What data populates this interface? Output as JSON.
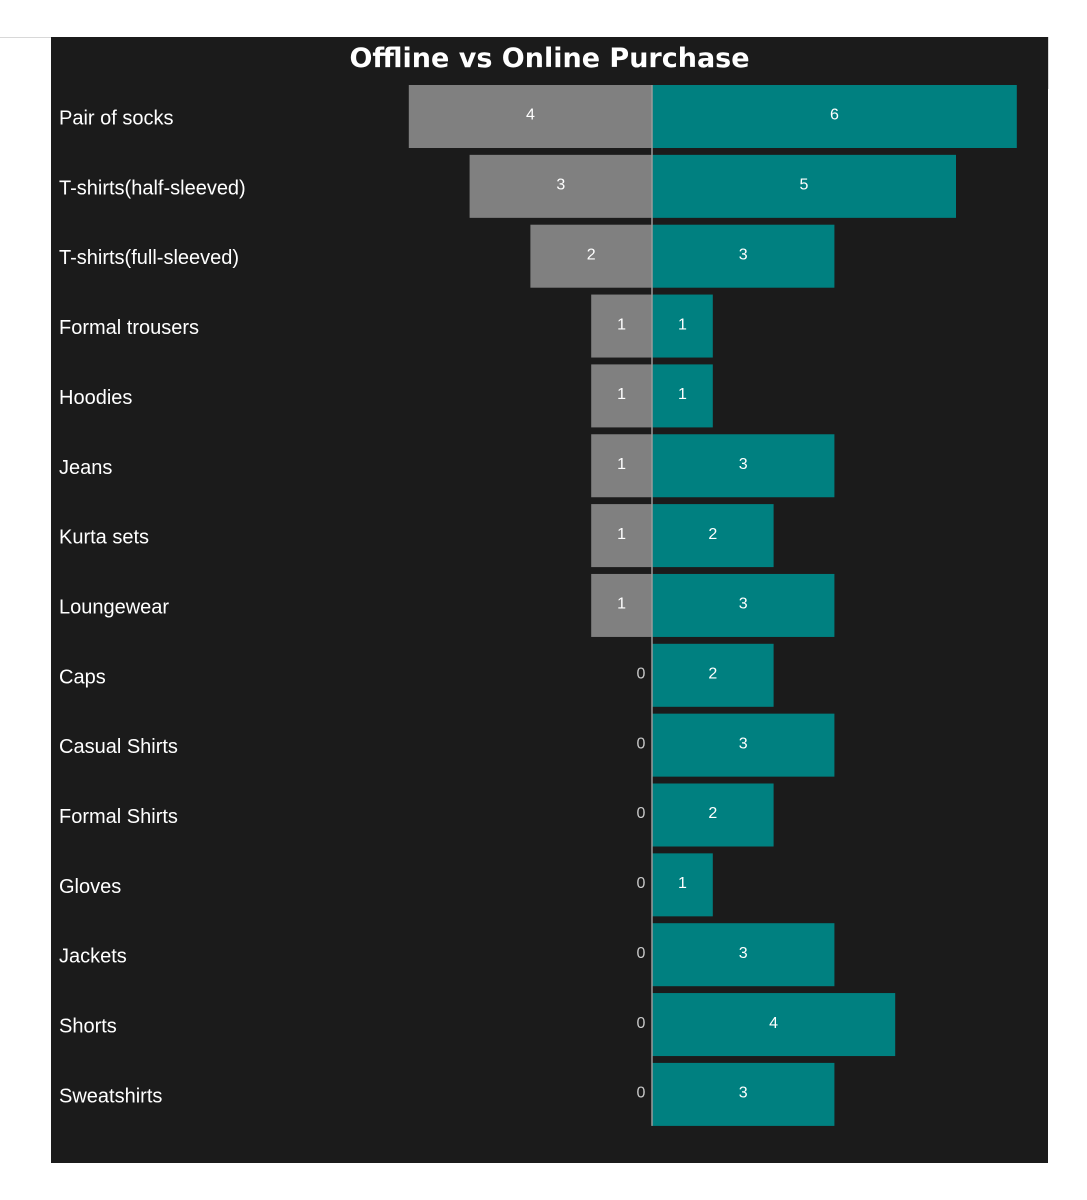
{
  "chart_data": {
    "type": "bar",
    "orientation": "horizontal-diverging",
    "title": "Offline vs Online Purchase",
    "categories": [
      "Pair of socks",
      "T-shirts(half-sleeved)",
      "T-shirts(full-sleeved)",
      "Formal trousers",
      "Hoodies",
      "Jeans",
      "Kurta sets",
      "Loungewear",
      "Caps",
      "Casual Shirts",
      "Formal Shirts",
      "Gloves",
      "Jackets",
      "Shorts",
      "Sweatshirts"
    ],
    "series": [
      {
        "key": "offline",
        "direction": "left",
        "color": "#808080",
        "values": [
          4,
          3,
          2,
          1,
          1,
          1,
          1,
          1,
          0,
          0,
          0,
          0,
          0,
          0,
          0
        ]
      },
      {
        "key": "online",
        "direction": "right",
        "color": "#008080",
        "values": [
          6,
          5,
          3,
          1,
          1,
          3,
          2,
          3,
          2,
          3,
          2,
          1,
          3,
          4,
          3
        ]
      }
    ],
    "xlim": [
      -6,
      6
    ],
    "grid": false,
    "legend": "none",
    "background": "#1b1b1b"
  }
}
